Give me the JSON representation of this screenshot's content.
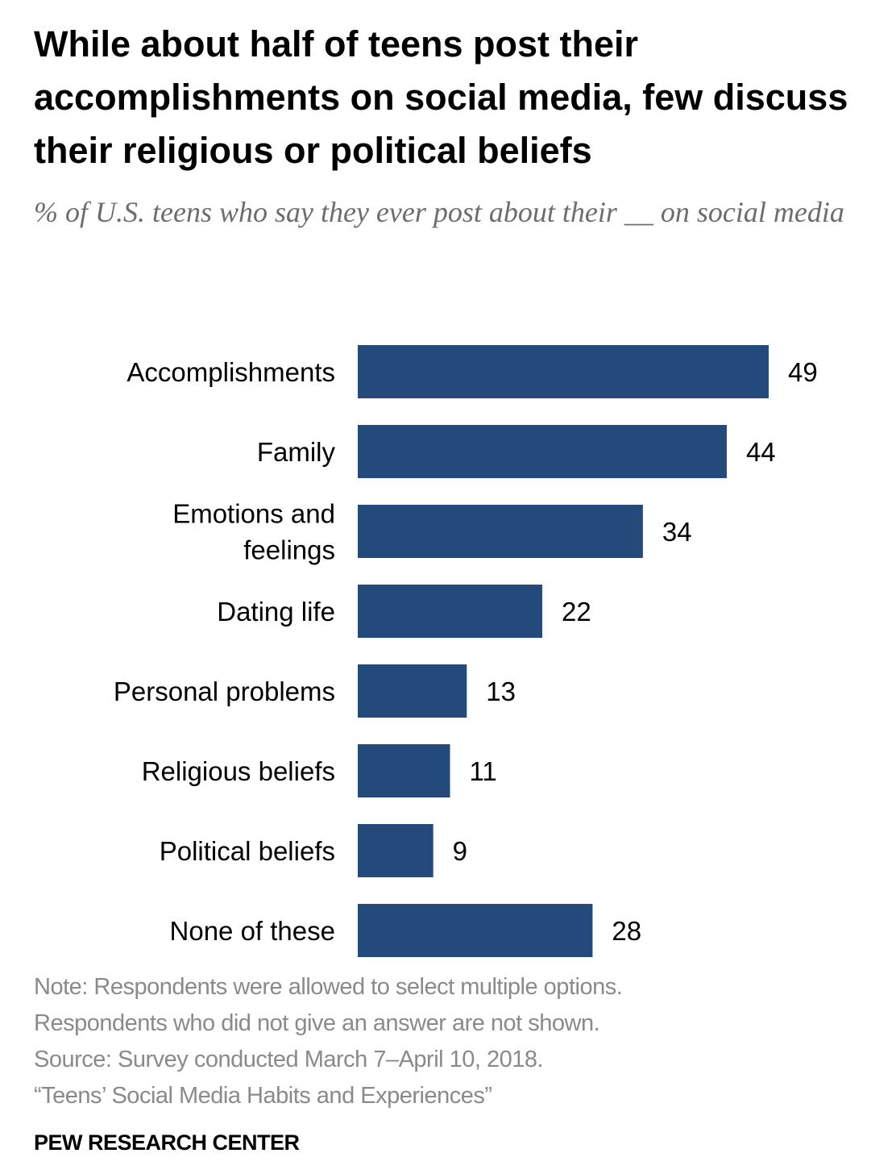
{
  "chart_data": {
    "type": "bar",
    "orientation": "horizontal",
    "title": "While about half of teens post their accomplishments on social media, few discuss their religious or political beliefs",
    "subtitle": "% of U.S. teens who say they ever post about their __ on social media",
    "categories": [
      [
        "Accomplishments"
      ],
      [
        "Family"
      ],
      [
        "Emotions and",
        "feelings"
      ],
      [
        "Dating life"
      ],
      [
        "Personal problems"
      ],
      [
        "Religious beliefs"
      ],
      [
        "Political beliefs"
      ],
      [
        "None of these"
      ]
    ],
    "values": [
      49,
      44,
      34,
      22,
      13,
      11,
      9,
      28
    ],
    "xlim": [
      0,
      49
    ],
    "grid": false,
    "bar_color": "#234a7b"
  },
  "note": {
    "lines": [
      "Note: Respondents were allowed to select multiple options.",
      "Respondents who did not give an answer are not shown.",
      "Source: Survey conducted March 7–April 10, 2018.",
      "“Teens’ Social Media Habits and Experiences”"
    ]
  },
  "brand": "PEW RESEARCH CENTER"
}
